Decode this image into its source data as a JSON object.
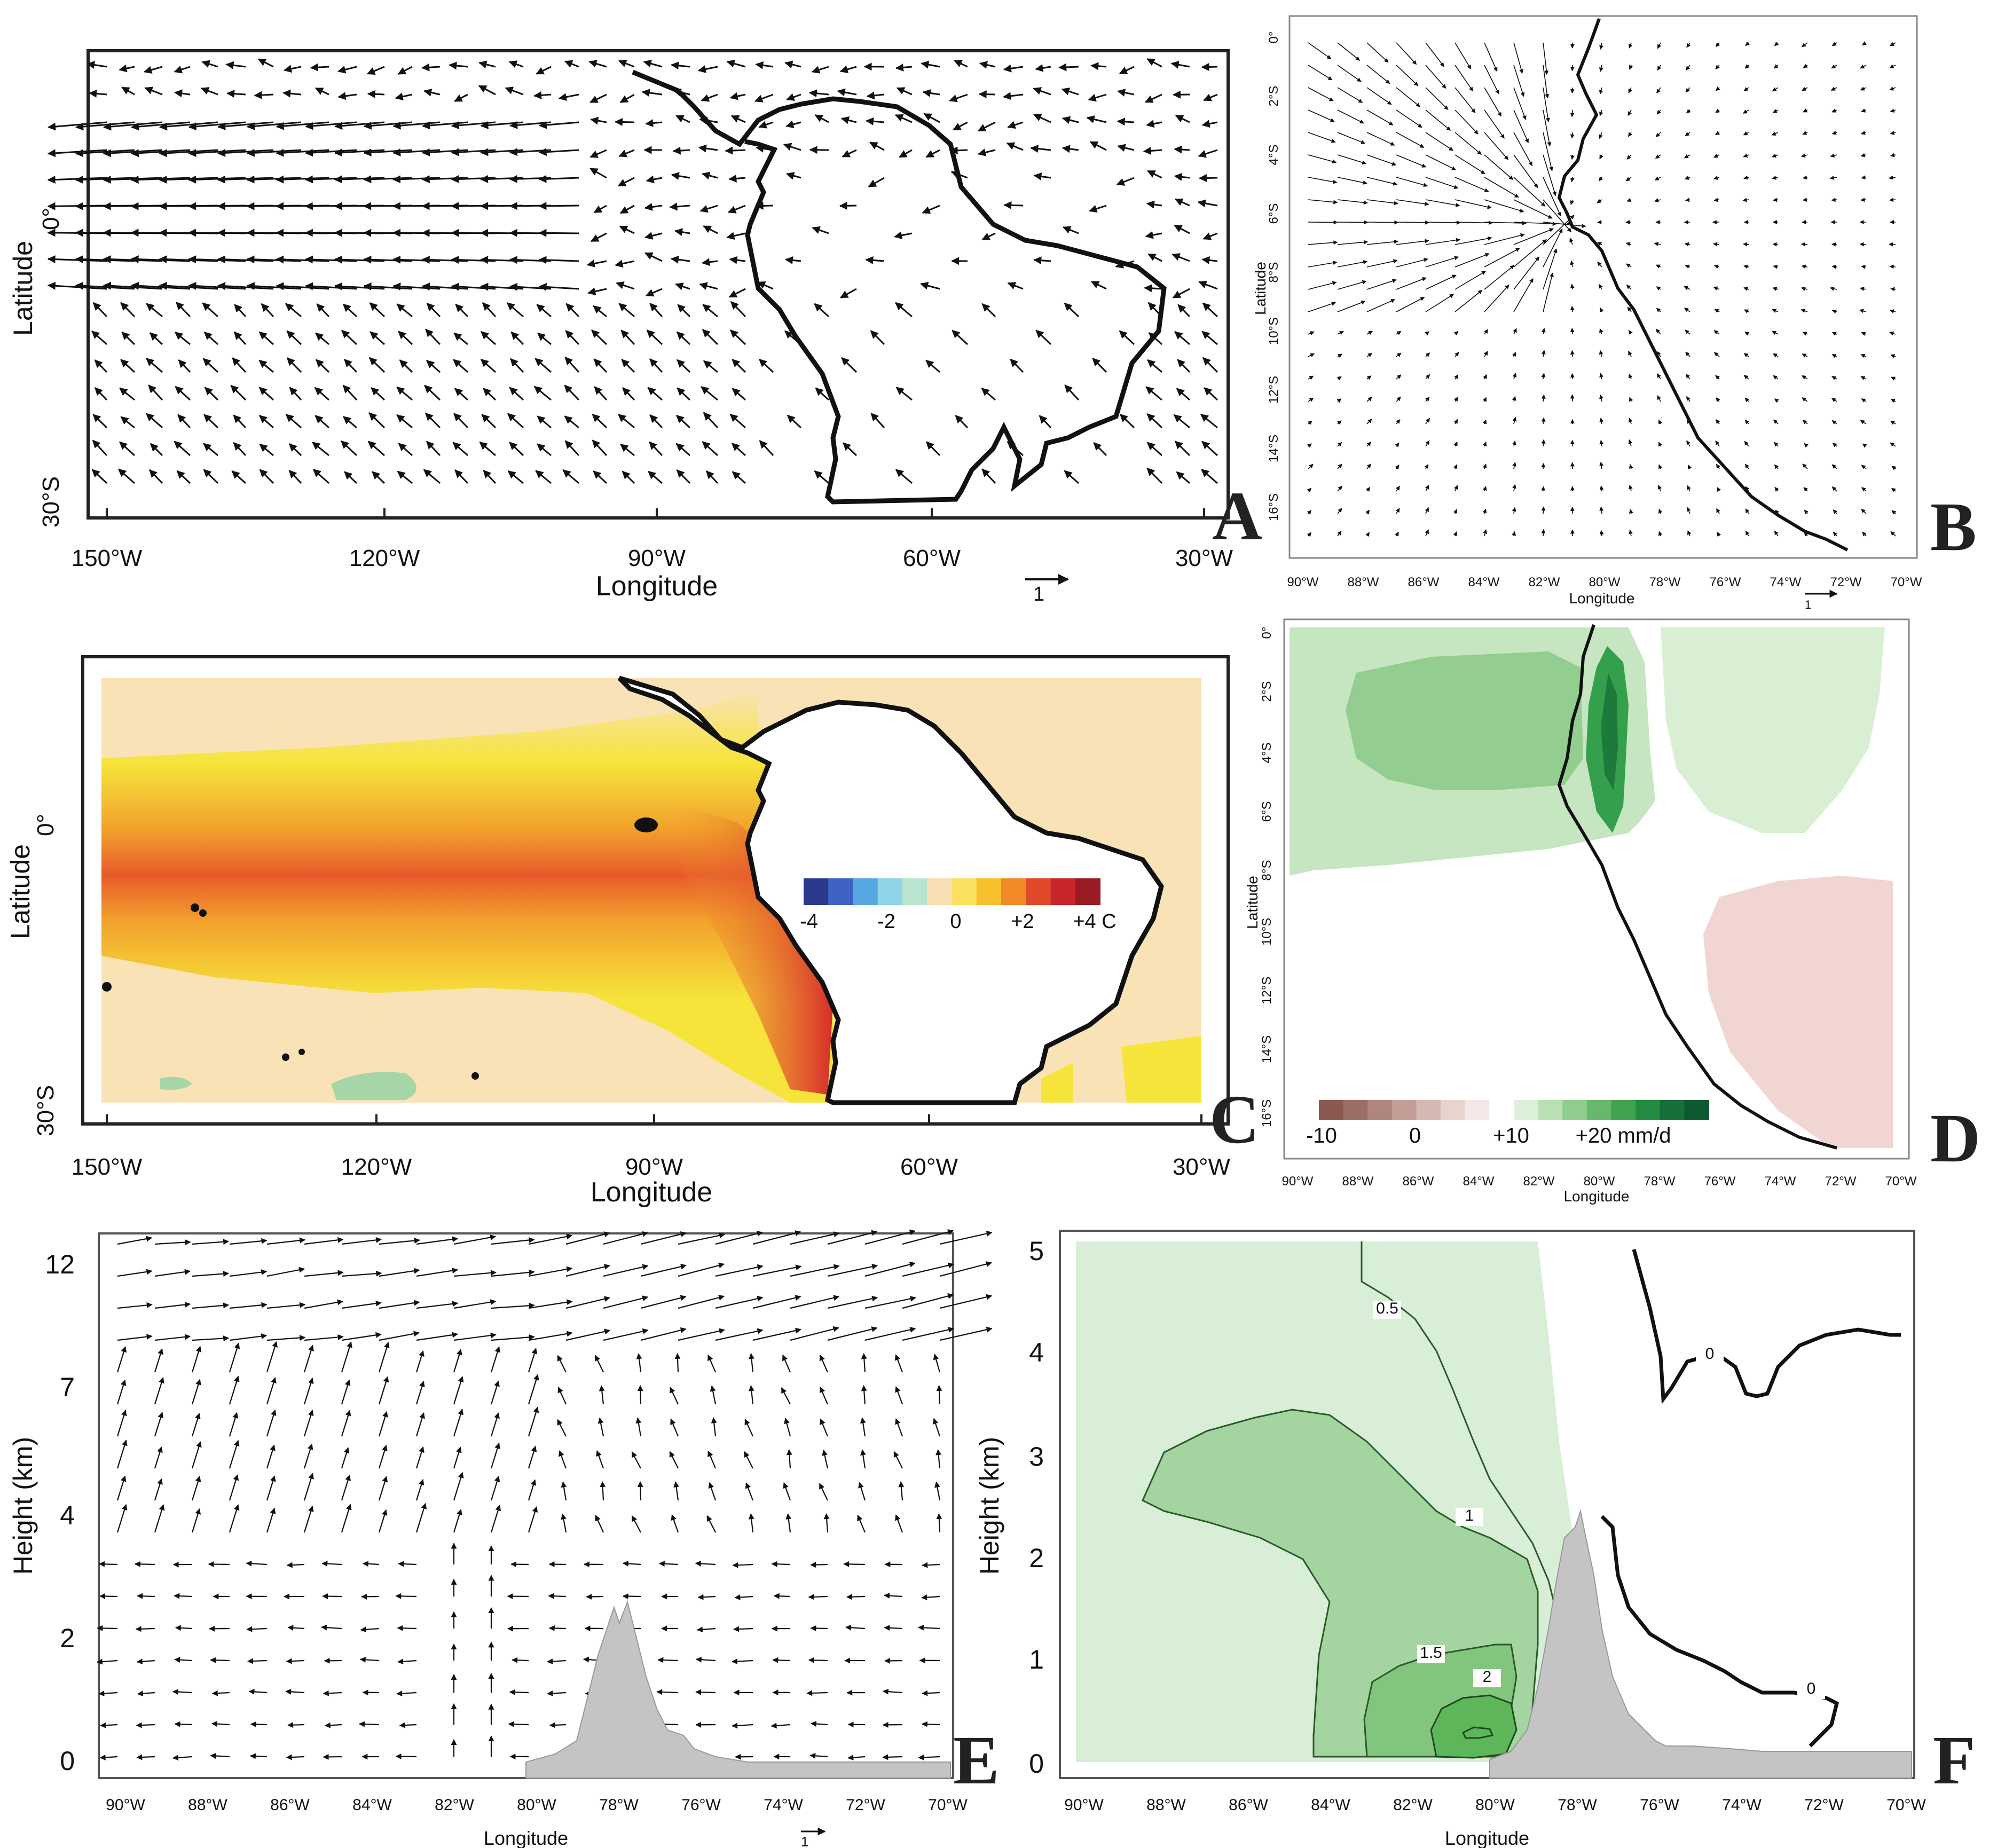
{
  "panels": {
    "A": {
      "letter": "A",
      "xlabel": "Longitude",
      "ylabel": "Latitude",
      "x_ticks": [
        "150°W",
        "120°W",
        "90°W",
        "60°W",
        "30°W"
      ],
      "y_ticks": [
        "0°",
        "30°S"
      ],
      "ref_vector": "1"
    },
    "B": {
      "letter": "B",
      "xlabel": "Longitude",
      "ylabel": "Latitude",
      "x_ticks": [
        "90°W",
        "88°W",
        "86°W",
        "84°W",
        "82°W",
        "80°W",
        "78°W",
        "76°W",
        "74°W",
        "72°W",
        "70°W"
      ],
      "y_ticks": [
        "0°",
        "2°S",
        "4°S",
        "6°S",
        "8°S",
        "10°S",
        "12°S",
        "14°S",
        "16°S"
      ],
      "ref_vector": "1"
    },
    "C": {
      "letter": "C",
      "xlabel": "Longitude",
      "ylabel": "Latitude",
      "x_ticks": [
        "150°W",
        "120°W",
        "90°W",
        "60°W",
        "30°W"
      ],
      "y_ticks": [
        "0°",
        "30°S"
      ],
      "colorbar_labels": [
        "-4",
        "-2",
        "0",
        "+2",
        "+4 C"
      ],
      "colorbar_colors": [
        "#2b3a8c",
        "#3f63c4",
        "#56a8e0",
        "#8fd3e8",
        "#b9e4cf",
        "#f9dfb4",
        "#fbe060",
        "#f7c02c",
        "#f08a26",
        "#e04a2a",
        "#c8262b",
        "#9b1b24"
      ]
    },
    "D": {
      "letter": "D",
      "xlabel": "Longitude",
      "ylabel": "Latitude",
      "x_ticks": [
        "90°W",
        "88°W",
        "86°W",
        "84°W",
        "82°W",
        "80°W",
        "78°W",
        "76°W",
        "74°W",
        "72°W",
        "70°W"
      ],
      "y_ticks": [
        "0°",
        "2°S",
        "4°S",
        "6°S",
        "8°S",
        "10°S",
        "12°S",
        "14°S",
        "16°S"
      ],
      "colorbar_labels": [
        "-10",
        "0",
        "+10",
        "+20 mm/d"
      ],
      "colorbar_colors": [
        "#8a5a52",
        "#9d6e66",
        "#b0857d",
        "#c39e97",
        "#d6b8b2",
        "#e8d3cf",
        "#f4e8e6",
        "#ffffff",
        "#dcefd9",
        "#b9e0b5",
        "#8fcd8d",
        "#66b86a",
        "#3fa350",
        "#238c41",
        "#16703a",
        "#0e5a30"
      ]
    },
    "E": {
      "letter": "E",
      "xlabel": "Longitude",
      "ylabel": "Height (km)",
      "x_ticks": [
        "90°W",
        "88°W",
        "86°W",
        "84°W",
        "82°W",
        "80°W",
        "78°W",
        "76°W",
        "74°W",
        "72°W",
        "70°W"
      ],
      "y_ticks": [
        "12",
        "7",
        "4",
        "2",
        "0"
      ],
      "ref_vector": "1"
    },
    "F": {
      "letter": "F",
      "xlabel": "Longitude",
      "ylabel": "Height (km)",
      "x_ticks": [
        "90°W",
        "88°W",
        "86°W",
        "84°W",
        "82°W",
        "80°W",
        "78°W",
        "76°W",
        "74°W",
        "72°W",
        "70°W"
      ],
      "y_ticks": [
        "5",
        "4",
        "3",
        "2",
        "1",
        "0"
      ],
      "contour_labels": [
        "0.5",
        "1",
        "1.5",
        "2",
        "0",
        "0"
      ]
    }
  }
}
